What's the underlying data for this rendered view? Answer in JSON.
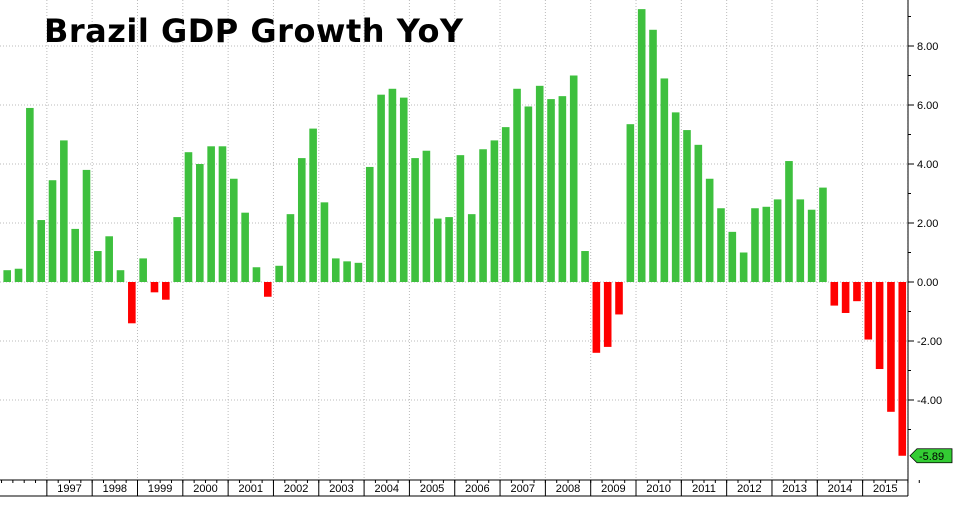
{
  "chart_data": {
    "type": "bar",
    "title": "Brazil GDP Growth YoY",
    "last_value_label": "-5.89",
    "ylim": [
      -6,
      9.5
    ],
    "grid": true,
    "y_ticks": [
      "-4.00",
      "-2.00",
      "0.00",
      "2.00",
      "4.00",
      "6.00",
      "8.00"
    ],
    "year_labels": [
      "1997",
      "1998",
      "1999",
      "2000",
      "2001",
      "2002",
      "2003",
      "2004",
      "2005",
      "2006",
      "2007",
      "2008",
      "2009",
      "2010",
      "2011",
      "2012",
      "2013",
      "2014",
      "2015"
    ],
    "values": [
      0.4,
      0.45,
      5.9,
      2.1,
      3.45,
      4.8,
      1.8,
      3.8,
      1.05,
      1.55,
      0.4,
      -1.4,
      0.8,
      -0.35,
      -0.6,
      2.2,
      4.4,
      4.0,
      4.6,
      4.6,
      3.5,
      2.35,
      0.5,
      -0.5,
      0.55,
      2.3,
      4.2,
      5.2,
      2.7,
      0.8,
      0.7,
      0.65,
      3.9,
      6.35,
      6.55,
      6.25,
      4.2,
      4.45,
      2.15,
      2.2,
      4.3,
      2.3,
      4.5,
      4.8,
      5.25,
      6.55,
      5.95,
      6.65,
      6.2,
      6.3,
      7.0,
      1.05,
      -2.4,
      -2.2,
      -1.1,
      5.35,
      9.25,
      8.55,
      6.9,
      5.75,
      5.15,
      4.65,
      3.5,
      2.5,
      1.7,
      1.0,
      2.5,
      2.55,
      2.8,
      4.1,
      2.8,
      2.45,
      3.2,
      -0.8,
      -1.05,
      -0.65,
      -1.95,
      -2.95,
      -4.4,
      -5.89
    ],
    "colors": {
      "positive": "#3ec03e",
      "negative": "#ff0000",
      "grid": "#bbbbbb",
      "axis": "#000000",
      "label_bg": "#33cc33"
    }
  }
}
